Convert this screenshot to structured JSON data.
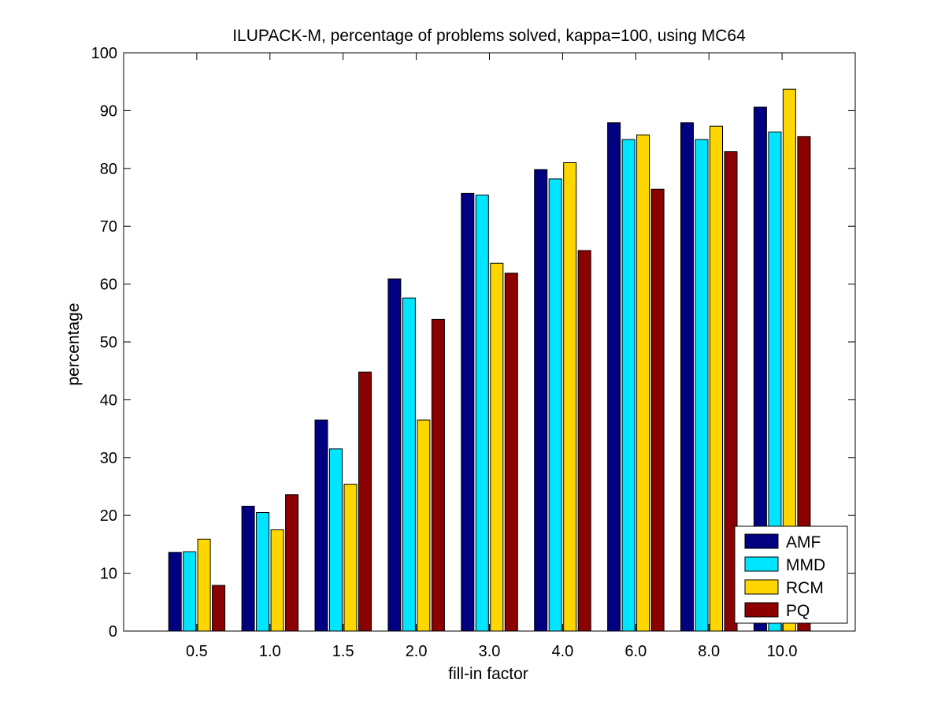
{
  "chart_data": {
    "type": "bar",
    "title": "ILUPACK-M, percentage of problems solved, kappa=100, using MC64",
    "xlabel": "fill-in factor",
    "ylabel": "percentage",
    "ylim": [
      0,
      100
    ],
    "yticks": [
      0,
      10,
      20,
      30,
      40,
      50,
      60,
      70,
      80,
      90,
      100
    ],
    "categories": [
      "0.5",
      "1.0",
      "1.5",
      "2.0",
      "3.0",
      "4.0",
      "6.0",
      "8.0",
      "10.0"
    ],
    "series": [
      {
        "name": "AMF",
        "color": "#000080",
        "values": [
          13.6,
          21.6,
          36.5,
          60.9,
          75.7,
          79.8,
          87.9,
          87.9,
          90.6
        ]
      },
      {
        "name": "MMD",
        "color": "#00e5ff",
        "values": [
          13.7,
          20.5,
          31.5,
          57.6,
          75.4,
          78.2,
          85.0,
          85.0,
          86.3
        ]
      },
      {
        "name": "RCM",
        "color": "#ffd700",
        "values": [
          15.9,
          17.5,
          25.4,
          36.5,
          63.6,
          81.0,
          85.8,
          87.3,
          93.7
        ]
      },
      {
        "name": "PQ",
        "color": "#8b0000",
        "values": [
          7.9,
          23.6,
          44.8,
          53.9,
          61.9,
          65.8,
          76.4,
          82.9,
          85.5
        ]
      }
    ],
    "grid": false,
    "legend_position": "bottom-right"
  }
}
